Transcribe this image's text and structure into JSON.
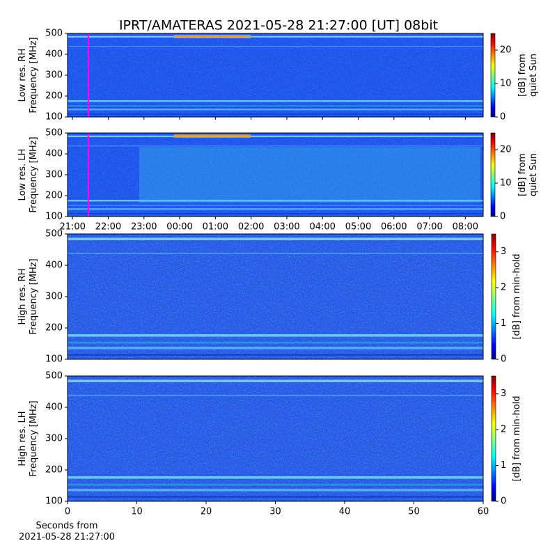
{
  "chart_data": [
    {
      "type": "heatmap",
      "title": "IPRT/AMATERAS 2021-05-28 21:27:00 [UT]   08bit",
      "ylabel": "Low res. RH\nFrequency [MHz]",
      "ylim": [
        100,
        500
      ],
      "yticks": [
        100,
        200,
        300,
        400,
        500
      ],
      "colorbar_label": "[dB] from\nquiet Sun",
      "clim": [
        0,
        25
      ],
      "colorbar_ticks": [
        0,
        10,
        20
      ]
    },
    {
      "type": "heatmap",
      "ylabel": "Low res. LH\nFrequency [MHz]",
      "ylim": [
        100,
        500
      ],
      "yticks": [
        100,
        200,
        300,
        400,
        500
      ],
      "xlim": [
        20.86,
        32.5
      ],
      "xticks": [
        {
          "value": 21,
          "label": "21:00"
        },
        {
          "value": 22,
          "label": "22:00"
        },
        {
          "value": 23,
          "label": "23:00"
        },
        {
          "value": 24,
          "label": "00:00"
        },
        {
          "value": 25,
          "label": "01:00"
        },
        {
          "value": 26,
          "label": "02:00"
        },
        {
          "value": 27,
          "label": "03:00"
        },
        {
          "value": 28,
          "label": "04:00"
        },
        {
          "value": 29,
          "label": "05:00"
        },
        {
          "value": 30,
          "label": "06:00"
        },
        {
          "value": 31,
          "label": "07:00"
        },
        {
          "value": 32,
          "label": "08:00"
        }
      ],
      "colorbar_label": "[dB] from\nquiet Sun",
      "clim": [
        0,
        25
      ],
      "colorbar_ticks": [
        0,
        10,
        20
      ]
    },
    {
      "type": "heatmap",
      "ylabel": "High res. RH\nFrequency [MHz]",
      "ylim": [
        100,
        500
      ],
      "yticks": [
        100,
        200,
        300,
        400,
        500
      ],
      "colorbar_label": "[dB] from min-hold",
      "clim": [
        0,
        3.5
      ],
      "colorbar_ticks": [
        0,
        1,
        2,
        3
      ]
    },
    {
      "type": "heatmap",
      "ylabel": "High res. LH\nFrequency [MHz]",
      "ylim": [
        100,
        500
      ],
      "yticks": [
        100,
        200,
        300,
        400,
        500
      ],
      "xlabel": "Seconds from\n2021-05-28 21:27:00",
      "xlim": [
        0,
        60
      ],
      "xticks": [
        0,
        10,
        20,
        30,
        40,
        50,
        60
      ],
      "colorbar_label": "[dB] from min-hold",
      "clim": [
        0,
        3.5
      ],
      "colorbar_ticks": [
        0,
        1,
        2,
        3
      ]
    }
  ]
}
